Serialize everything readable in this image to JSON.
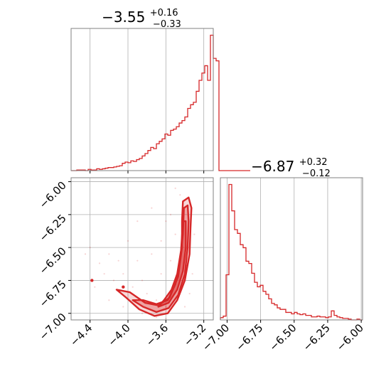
{
  "chart_data": [
    {
      "type": "histogram",
      "panel": "param-1-marginal",
      "title": "−3.55",
      "title_plus": "+0.16",
      "title_minus": "−0.33",
      "xlim": [
        -4.6,
        -3.1
      ],
      "x_ticks": [
        -4.4,
        -4.0,
        -3.6,
        -3.2
      ],
      "x_tick_labels": [
        "−4.4",
        "−4.0",
        "−3.6",
        "−3.2"
      ],
      "grid": true,
      "color": "#d62728",
      "bins": {
        "start": -4.6,
        "width": 0.03,
        "counts": [
          0,
          0,
          1,
          1,
          1,
          0,
          2,
          1,
          1,
          3,
          2,
          3,
          4,
          5,
          5,
          6,
          7,
          8,
          12,
          14,
          13,
          16,
          15,
          18,
          20,
          24,
          28,
          33,
          38,
          36,
          44,
          48,
          52,
          60,
          58,
          66,
          68,
          72,
          78,
          82,
          88,
          102,
          108,
          112,
          130,
          148,
          160,
          172,
          148,
          222,
          184,
          180,
          0,
          0,
          0,
          0,
          0,
          0,
          0,
          0,
          0,
          0,
          0
        ]
      }
    },
    {
      "type": "contour",
      "panel": "joint-2d",
      "xlim": [
        -4.6,
        -3.1
      ],
      "ylim": [
        -7.05,
        -5.97
      ],
      "x_ticks": [
        -4.4,
        -4.0,
        -3.6,
        -3.2
      ],
      "x_tick_labels": [
        "−4.4",
        "−4.0",
        "−3.6",
        "−3.2"
      ],
      "y_ticks": [
        -6.0,
        -6.25,
        -6.5,
        -6.75,
        -7.0
      ],
      "y_tick_labels": [
        "−6.00",
        "−6.25",
        "−6.50",
        "−6.75",
        "−7.00"
      ],
      "grid": true,
      "color": "#d62728",
      "contour_levels": [
        [
          [
            -3.42,
            -6.15
          ],
          [
            -3.36,
            -6.12
          ],
          [
            -3.33,
            -6.2
          ],
          [
            -3.34,
            -6.35
          ],
          [
            -3.35,
            -6.55
          ],
          [
            -3.4,
            -6.75
          ],
          [
            -3.48,
            -6.9
          ],
          [
            -3.58,
            -7.0
          ],
          [
            -3.72,
            -7.02
          ],
          [
            -3.88,
            -6.97
          ],
          [
            -4.02,
            -6.88
          ],
          [
            -4.12,
            -6.82
          ],
          [
            -3.98,
            -6.84
          ],
          [
            -3.82,
            -6.92
          ],
          [
            -3.68,
            -6.94
          ],
          [
            -3.56,
            -6.88
          ],
          [
            -3.47,
            -6.72
          ],
          [
            -3.43,
            -6.5
          ],
          [
            -3.43,
            -6.3
          ],
          [
            -3.42,
            -6.15
          ]
        ],
        [
          [
            -3.41,
            -6.2
          ],
          [
            -3.37,
            -6.18
          ],
          [
            -3.36,
            -6.3
          ],
          [
            -3.37,
            -6.5
          ],
          [
            -3.4,
            -6.7
          ],
          [
            -3.47,
            -6.86
          ],
          [
            -3.57,
            -6.96
          ],
          [
            -3.7,
            -6.99
          ],
          [
            -3.84,
            -6.95
          ],
          [
            -3.95,
            -6.9
          ],
          [
            -3.84,
            -6.9
          ],
          [
            -3.7,
            -6.93
          ],
          [
            -3.58,
            -6.9
          ],
          [
            -3.5,
            -6.78
          ],
          [
            -3.45,
            -6.6
          ],
          [
            -3.42,
            -6.4
          ],
          [
            -3.41,
            -6.2
          ]
        ],
        [
          [
            -3.42,
            -6.3
          ],
          [
            -3.39,
            -6.3
          ],
          [
            -3.39,
            -6.5
          ],
          [
            -3.42,
            -6.68
          ],
          [
            -3.48,
            -6.82
          ],
          [
            -3.57,
            -6.92
          ],
          [
            -3.68,
            -6.95
          ],
          [
            -3.62,
            -6.9
          ],
          [
            -3.54,
            -6.82
          ],
          [
            -3.48,
            -6.7
          ],
          [
            -3.44,
            -6.52
          ],
          [
            -3.42,
            -6.3
          ]
        ]
      ],
      "samples": [
        [
          -4.4,
          -6.5
        ],
        [
          -4.3,
          -6.62
        ],
        [
          -4.25,
          -6.7
        ],
        [
          -4.2,
          -6.55
        ],
        [
          -4.15,
          -6.75
        ],
        [
          -4.1,
          -6.6
        ],
        [
          -4.05,
          -6.7
        ],
        [
          -4.0,
          -6.45
        ],
        [
          -3.95,
          -6.8
        ],
        [
          -3.9,
          -6.6
        ],
        [
          -3.85,
          -6.75
        ],
        [
          -3.8,
          -6.85
        ],
        [
          -3.75,
          -6.55
        ],
        [
          -3.7,
          -6.9
        ],
        [
          -3.65,
          -6.7
        ],
        [
          -3.6,
          -6.95
        ],
        [
          -3.55,
          -6.6
        ],
        [
          -3.5,
          -6.85
        ],
        [
          -3.5,
          -6.4
        ],
        [
          -3.45,
          -6.1
        ],
        [
          -3.55,
          -6.25
        ],
        [
          -3.6,
          -6.3
        ],
        [
          -3.3,
          -6.4
        ],
        [
          -3.32,
          -6.7
        ],
        [
          -3.35,
          -6.85
        ],
        [
          -3.4,
          -6.95
        ],
        [
          -3.6,
          -7.04
        ],
        [
          -3.7,
          -7.03
        ],
        [
          -4.35,
          -6.8
        ],
        [
          -4.45,
          -6.55
        ],
        [
          -4.2,
          -6.9
        ],
        [
          -3.9,
          -6.3
        ],
        [
          -3.75,
          -6.2
        ],
        [
          -3.65,
          -6.45
        ],
        [
          -3.5,
          -6.05
        ],
        [
          -4.05,
          -6.95
        ],
        [
          -3.85,
          -7.0
        ]
      ],
      "outliers": [
        [
          -4.38,
          -6.75
        ],
        [
          -4.05,
          -6.8
        ]
      ]
    },
    {
      "type": "histogram",
      "panel": "param-2-marginal",
      "title": "−6.87",
      "title_plus": "+0.32",
      "title_minus": "−0.12",
      "xlim": [
        -7.05,
        -5.99
      ],
      "x_ticks": [
        -7.0,
        -6.75,
        -6.5,
        -6.25,
        -6.0
      ],
      "x_tick_labels": [
        "−7.00",
        "−6.75",
        "−6.50",
        "−6.25",
        "−6.00"
      ],
      "grid": true,
      "color": "#d62728",
      "bins": {
        "start": -7.05,
        "width": 0.0212,
        "counts": [
          3,
          5,
          60,
          180,
          145,
          120,
          115,
          100,
          96,
          78,
          75,
          62,
          50,
          44,
          46,
          38,
          34,
          28,
          22,
          20,
          16,
          14,
          14,
          10,
          10,
          8,
          10,
          8,
          7,
          8,
          6,
          6,
          4,
          4,
          5,
          4,
          4,
          3,
          4,
          12,
          6,
          4,
          3,
          2,
          2,
          1,
          0,
          0,
          1,
          0
        ]
      }
    }
  ]
}
